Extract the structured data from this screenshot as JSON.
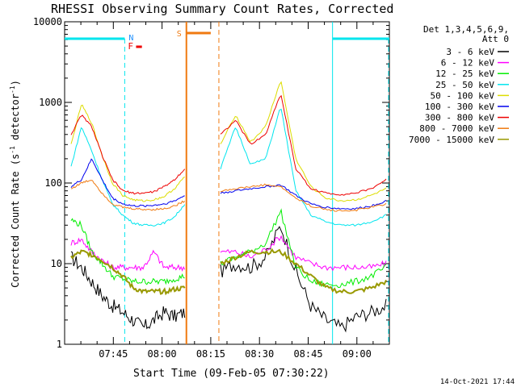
{
  "chart_data": {
    "type": "line",
    "title": "RHESSI Observing Summary Count Rates, Corrected",
    "xlabel": "Start Time (09-Feb-05 07:30:22)",
    "ylabel_main": "Corrected Count Rate (s",
    "ylabel_sup1": "-1",
    "ylabel_mid": " detector",
    "ylabel_sup2": "-1",
    "ylabel_end": ")",
    "timestamp": "14-Oct-2021 17:44",
    "yscale": "log",
    "ylim": [
      1,
      10000
    ],
    "xlim_minutes": [
      0,
      100
    ],
    "ytick_labels": [
      "1",
      "10",
      "100",
      "1000",
      "10000"
    ],
    "ytick_values": [
      1,
      10,
      100,
      1000,
      10000
    ],
    "xtick_labels": [
      "07:45",
      "08:00",
      "08:15",
      "08:30",
      "08:45",
      "09:00"
    ],
    "xtick_values": [
      15,
      30,
      45,
      60,
      75,
      90
    ],
    "legend_header_1": "Det 1,3,4,5,6,9,",
    "legend_header_2": "Att 0",
    "data_gap": [
      37.5,
      47.5
    ],
    "night_intervals": [
      [
        0,
        18.5
      ],
      [
        82.5,
        100
      ]
    ],
    "night_label": "N",
    "flare_label": "F",
    "saa_label": "S",
    "colors": {
      "night": "#00e5ee",
      "flare": "#ee0000",
      "saa": "#f07a10",
      "axis": "#000000"
    },
    "series": [
      {
        "name": "3 - 6 keV",
        "color": "#000000",
        "values_pre": [
          12,
          9,
          6,
          4,
          3,
          2.5,
          2,
          1.6,
          2,
          2.5,
          2.2,
          2.5
        ],
        "values_post": [
          8,
          10,
          9,
          12,
          30,
          8,
          3,
          2,
          1.6,
          2.2,
          2.5,
          3
        ]
      },
      {
        "name": "6 - 12 keV",
        "color": "#ff00ff",
        "values_pre": [
          18,
          20,
          14,
          11,
          9,
          9,
          9,
          9,
          14,
          9,
          9,
          9
        ],
        "values_post": [
          14,
          14,
          12,
          15,
          22,
          12,
          10,
          9,
          9,
          9,
          9,
          10
        ]
      },
      {
        "name": "12 - 25 keV",
        "color": "#00ee00",
        "values_pre": [
          35,
          30,
          14,
          10,
          7,
          6.5,
          6,
          6,
          6,
          6,
          6.5,
          7
        ],
        "values_post": [
          10,
          12,
          14,
          18,
          45,
          9,
          6,
          5.5,
          5.5,
          6,
          7,
          9
        ]
      },
      {
        "name": "25 - 50 keV",
        "color": "#00e5ee",
        "values_pre": [
          160,
          500,
          250,
          110,
          55,
          40,
          32,
          30,
          30,
          32,
          38,
          55
        ],
        "values_post": [
          150,
          500,
          170,
          200,
          900,
          80,
          40,
          33,
          30,
          30,
          33,
          40
        ]
      },
      {
        "name": "50 - 100 keV",
        "color": "#dddd00",
        "values_pre": [
          300,
          950,
          550,
          220,
          100,
          70,
          62,
          60,
          62,
          68,
          85,
          120
        ],
        "values_post": [
          300,
          700,
          320,
          500,
          1900,
          200,
          90,
          65,
          60,
          62,
          70,
          85
        ]
      },
      {
        "name": "100 - 300 keV",
        "color": "#0000ee",
        "values_pre": [
          90,
          110,
          200,
          110,
          65,
          55,
          52,
          52,
          53,
          55,
          60,
          70
        ],
        "values_post": [
          75,
          80,
          85,
          90,
          95,
          70,
          55,
          50,
          48,
          48,
          52,
          60
        ]
      },
      {
        "name": "300 - 800 keV",
        "color": "#ee0000",
        "values_pre": [
          400,
          700,
          500,
          220,
          110,
          80,
          75,
          75,
          78,
          90,
          110,
          150
        ],
        "values_post": [
          400,
          600,
          300,
          400,
          1300,
          150,
          85,
          75,
          72,
          75,
          85,
          110
        ]
      },
      {
        "name": "800 - 7000 keV",
        "color": "#f07a10",
        "values_pre": [
          85,
          100,
          110,
          75,
          55,
          50,
          48,
          47,
          47,
          48,
          52,
          60
        ],
        "values_post": [
          80,
          85,
          90,
          95,
          90,
          65,
          52,
          47,
          45,
          46,
          50,
          55
        ]
      },
      {
        "name": "7000 - 15000 keV",
        "color": "#999900",
        "values_pre": [
          12,
          14,
          13,
          11,
          9,
          7,
          5,
          4.5,
          4.5,
          4.5,
          4.8,
          5
        ],
        "values_post": [
          10,
          12,
          14,
          14,
          14,
          10,
          7,
          5,
          4.5,
          4.5,
          5,
          6
        ]
      }
    ]
  }
}
